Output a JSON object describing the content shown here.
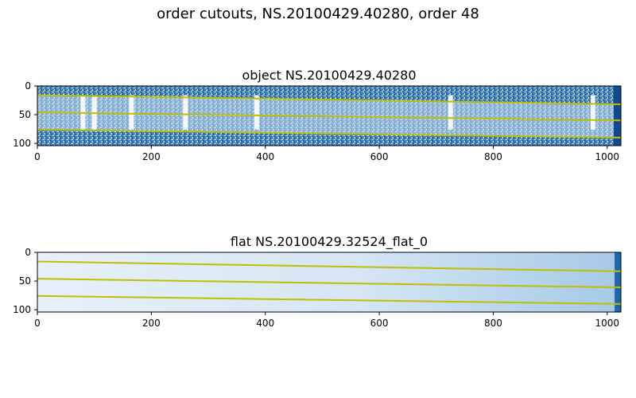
{
  "figure": {
    "title": "order cutouts, NS.20100429.40280, order 48"
  },
  "colors": {
    "trace": "#bfbf00",
    "object_dark": "#1f5f9f",
    "flat_light": "#e6f0fa",
    "flat_mid": "#9ec6e4",
    "flat_edge": "#1c66b0"
  },
  "chart_data": [
    {
      "type": "heatmap",
      "title": "object NS.20100429.40280",
      "x_ticks": [
        "0",
        "200",
        "400",
        "600",
        "800",
        "1000"
      ],
      "y_ticks": [
        "0",
        "50",
        "100"
      ],
      "xlim": [
        0,
        1024
      ],
      "ylim": [
        104,
        0
      ],
      "colormap": "Blues",
      "traces": [
        {
          "x": [
            0,
            1024
          ],
          "y": [
            16,
            32
          ]
        },
        {
          "x": [
            0,
            1024
          ],
          "y": [
            46,
            60
          ]
        },
        {
          "x": [
            0,
            1024
          ],
          "y": [
            76,
            90
          ]
        }
      ],
      "bright_columns": [
        80,
        100,
        165,
        260,
        385,
        725,
        975
      ]
    },
    {
      "type": "heatmap",
      "title": "flat NS.20100429.32524_flat_0",
      "x_ticks": [
        "0",
        "200",
        "400",
        "600",
        "800",
        "1000"
      ],
      "y_ticks": [
        "0",
        "50",
        "100"
      ],
      "xlim": [
        0,
        1024
      ],
      "ylim": [
        104,
        0
      ],
      "colormap": "Blues",
      "traces": [
        {
          "x": [
            0,
            1024
          ],
          "y": [
            16,
            33
          ]
        },
        {
          "x": [
            0,
            1024
          ],
          "y": [
            46,
            61
          ]
        },
        {
          "x": [
            0,
            1024
          ],
          "y": [
            76,
            90
          ]
        }
      ],
      "saturated_edge_x": [
        1000,
        1024
      ]
    }
  ]
}
